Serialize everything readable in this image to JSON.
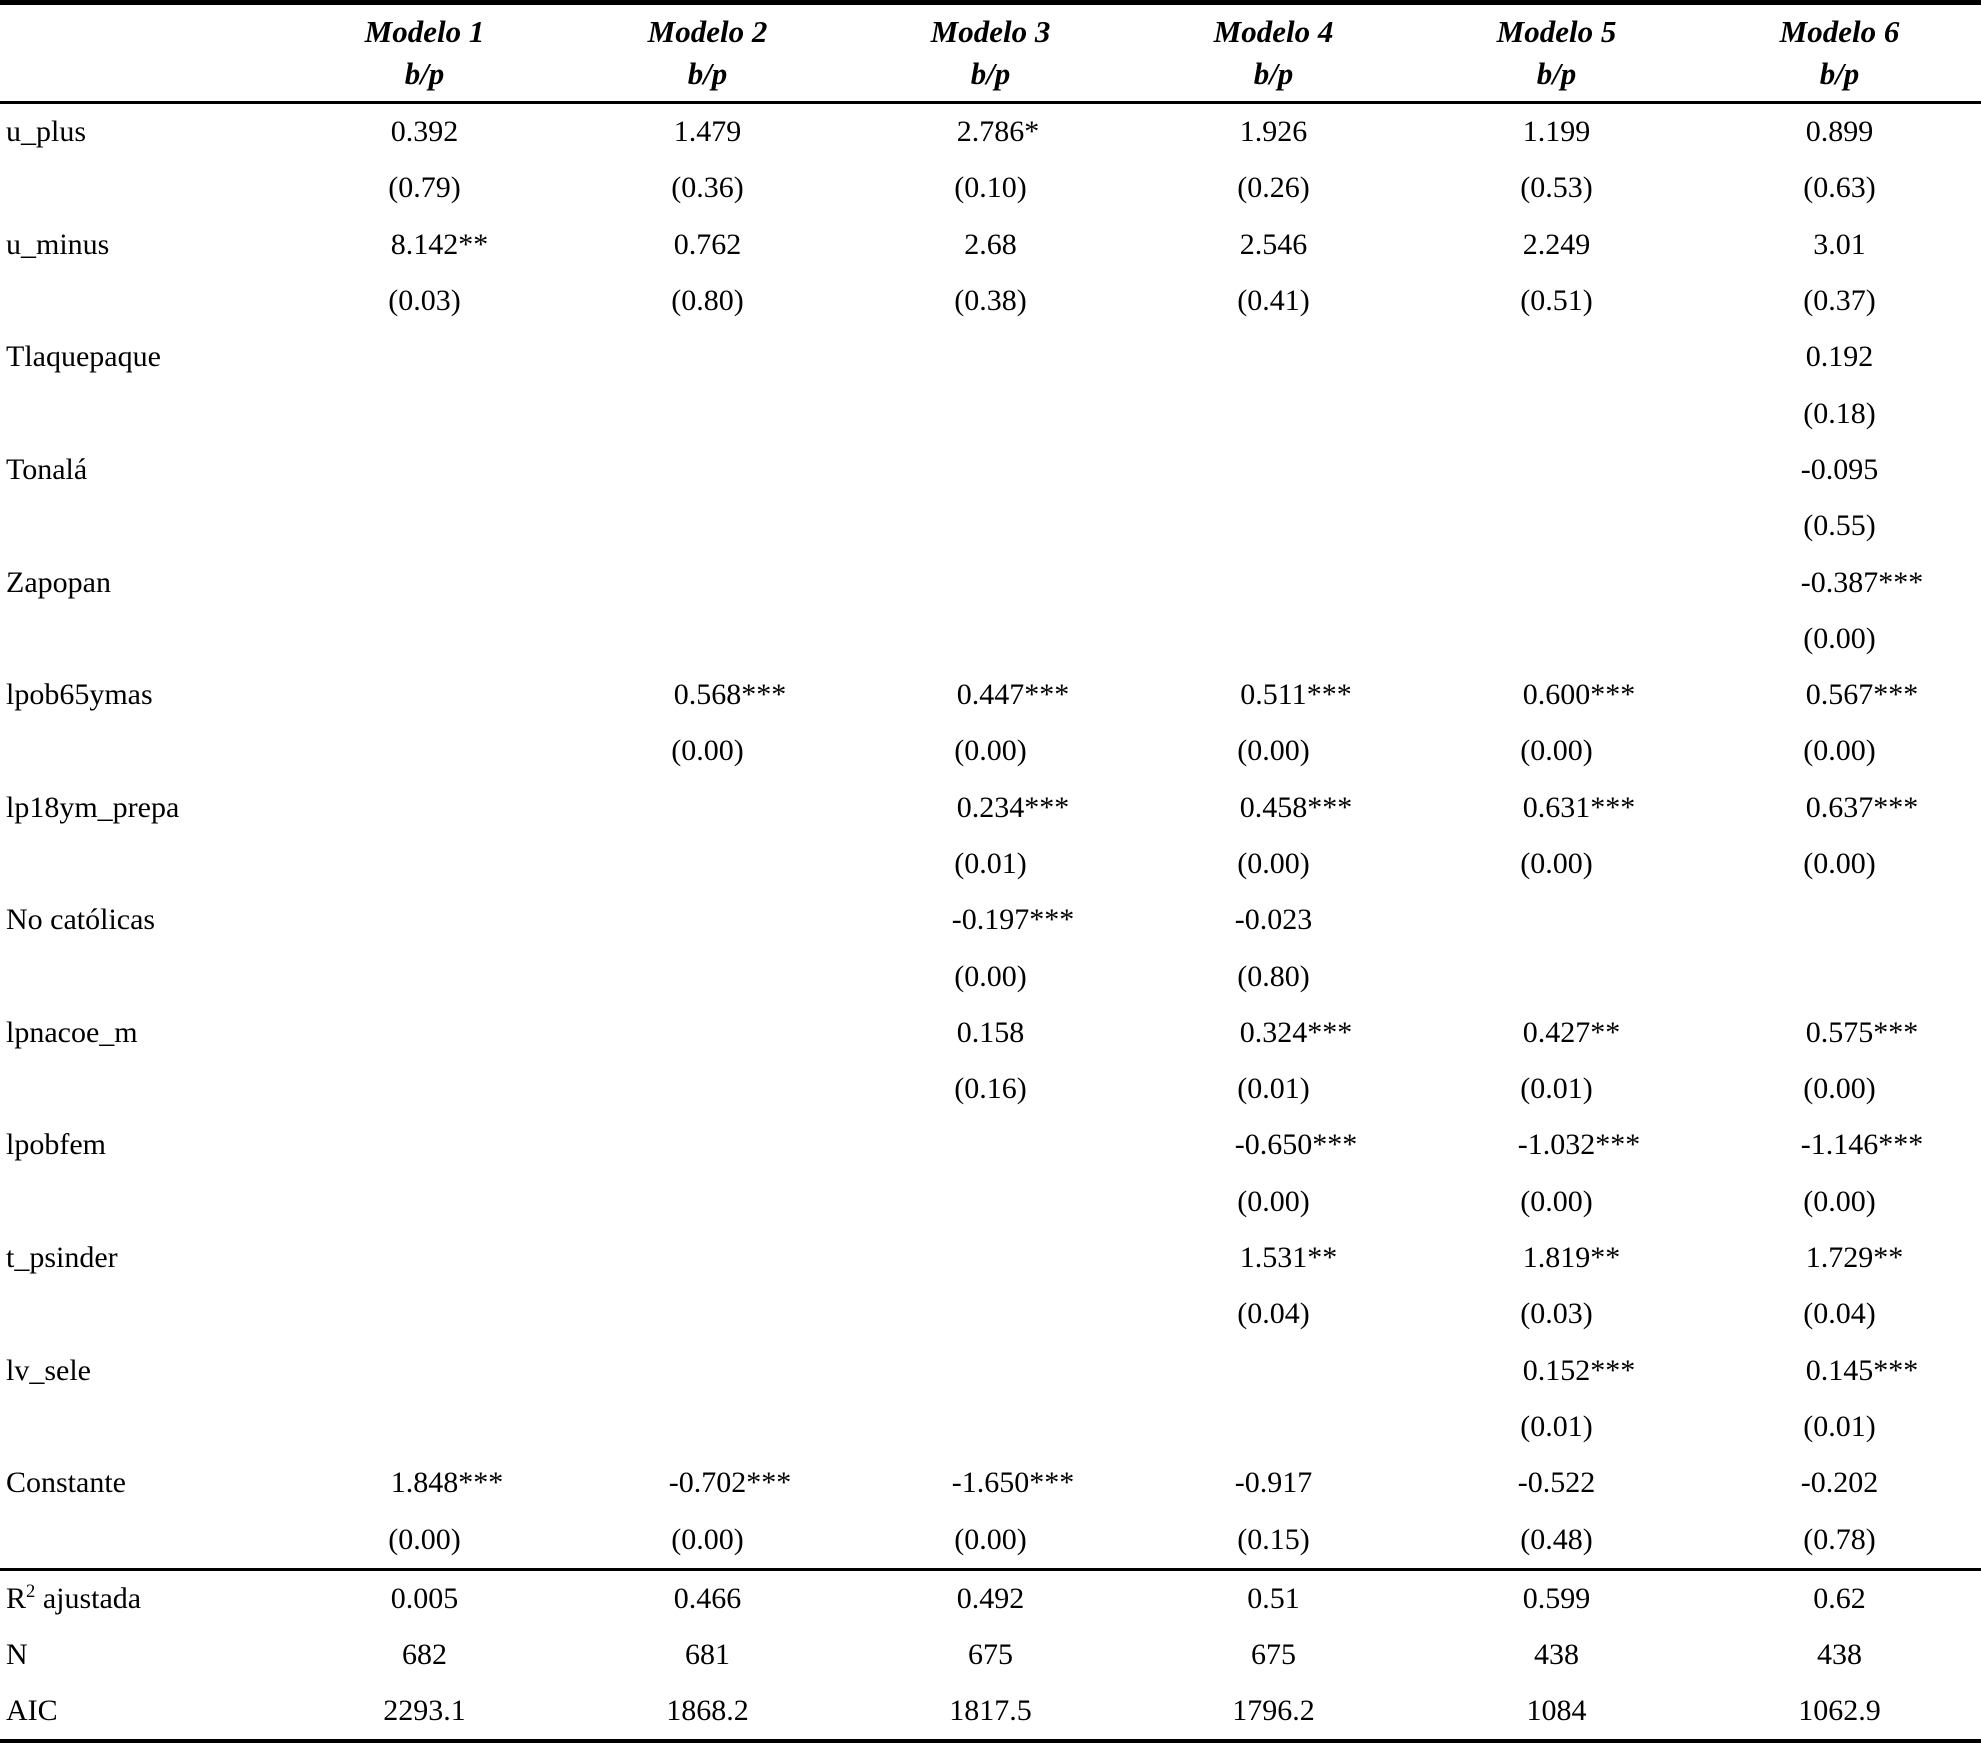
{
  "table": {
    "columns": [
      "Modelo 1",
      "Modelo 2",
      "Modelo 3",
      "Modelo 4",
      "Modelo 5",
      "Modelo 6"
    ],
    "subheader": "b/p",
    "rows": [
      {
        "label": "u_plus",
        "coef": [
          "0.392",
          "1.479",
          "2.786*",
          "1.926",
          "1.199",
          "0.899"
        ],
        "p": [
          "(0.79)",
          "(0.36)",
          "(0.10)",
          "(0.26)",
          "(0.53)",
          "(0.63)"
        ]
      },
      {
        "label": "u_minus",
        "coef": [
          "8.142**",
          "0.762",
          "2.68",
          "2.546",
          "2.249",
          "3.01"
        ],
        "p": [
          "(0.03)",
          "(0.80)",
          "(0.38)",
          "(0.41)",
          "(0.51)",
          "(0.37)"
        ]
      },
      {
        "label": "Tlaquepaque",
        "coef": [
          "",
          "",
          "",
          "",
          "",
          "0.192"
        ],
        "p": [
          "",
          "",
          "",
          "",
          "",
          "(0.18)"
        ]
      },
      {
        "label": "Tonalá",
        "coef": [
          "",
          "",
          "",
          "",
          "",
          "-0.095"
        ],
        "p": [
          "",
          "",
          "",
          "",
          "",
          "(0.55)"
        ]
      },
      {
        "label": "Zapopan",
        "coef": [
          "",
          "",
          "",
          "",
          "",
          "-0.387***"
        ],
        "p": [
          "",
          "",
          "",
          "",
          "",
          "(0.00)"
        ]
      },
      {
        "label": "lpob65ymas",
        "coef": [
          "",
          "0.568***",
          "0.447***",
          "0.511***",
          "0.600***",
          "0.567***"
        ],
        "p": [
          "",
          "(0.00)",
          "(0.00)",
          "(0.00)",
          "(0.00)",
          "(0.00)"
        ]
      },
      {
        "label": "lp18ym_prepa",
        "coef": [
          "",
          "",
          "0.234***",
          "0.458***",
          "0.631***",
          "0.637***"
        ],
        "p": [
          "",
          "",
          "(0.01)",
          "(0.00)",
          "(0.00)",
          "(0.00)"
        ]
      },
      {
        "label": "No católicas",
        "coef": [
          "",
          "",
          "-0.197***",
          "-0.023",
          "",
          ""
        ],
        "p": [
          "",
          "",
          "(0.00)",
          "(0.80)",
          "",
          ""
        ]
      },
      {
        "label": "lpnacoe_m",
        "coef": [
          "",
          "",
          "0.158",
          "0.324***",
          "0.427**",
          "0.575***"
        ],
        "p": [
          "",
          "",
          "(0.16)",
          "(0.01)",
          "(0.01)",
          "(0.00)"
        ]
      },
      {
        "label": "lpobfem",
        "coef": [
          "",
          "",
          "",
          "-0.650***",
          "-1.032***",
          "-1.146***"
        ],
        "p": [
          "",
          "",
          "",
          "(0.00)",
          "(0.00)",
          "(0.00)"
        ]
      },
      {
        "label": "t_psinder",
        "coef": [
          "",
          "",
          "",
          "1.531**",
          "1.819**",
          "1.729**"
        ],
        "p": [
          "",
          "",
          "",
          "(0.04)",
          "(0.03)",
          "(0.04)"
        ]
      },
      {
        "label": "lv_sele",
        "coef": [
          "",
          "",
          "",
          "",
          "0.152***",
          "0.145***"
        ],
        "p": [
          "",
          "",
          "",
          "",
          "(0.01)",
          "(0.01)"
        ]
      },
      {
        "label": "Constante",
        "coef": [
          "1.848***",
          "-0.702***",
          "-1.650***",
          "-0.917",
          "-0.522",
          "-0.202"
        ],
        "p": [
          "(0.00)",
          "(0.00)",
          "(0.00)",
          "(0.15)",
          "(0.48)",
          "(0.78)"
        ]
      }
    ],
    "stats": [
      {
        "label": "R² ajustada",
        "values": [
          "0.005",
          "0.466",
          "0.492",
          "0.51",
          "0.599",
          "0.62"
        ]
      },
      {
        "label": "N",
        "values": [
          "682",
          "681",
          "675",
          "675",
          "438",
          "438"
        ]
      },
      {
        "label": "AIC",
        "values": [
          "2293.1",
          "1868.2",
          "1817.5",
          "1796.2",
          "1084",
          "1062.9"
        ]
      }
    ]
  }
}
